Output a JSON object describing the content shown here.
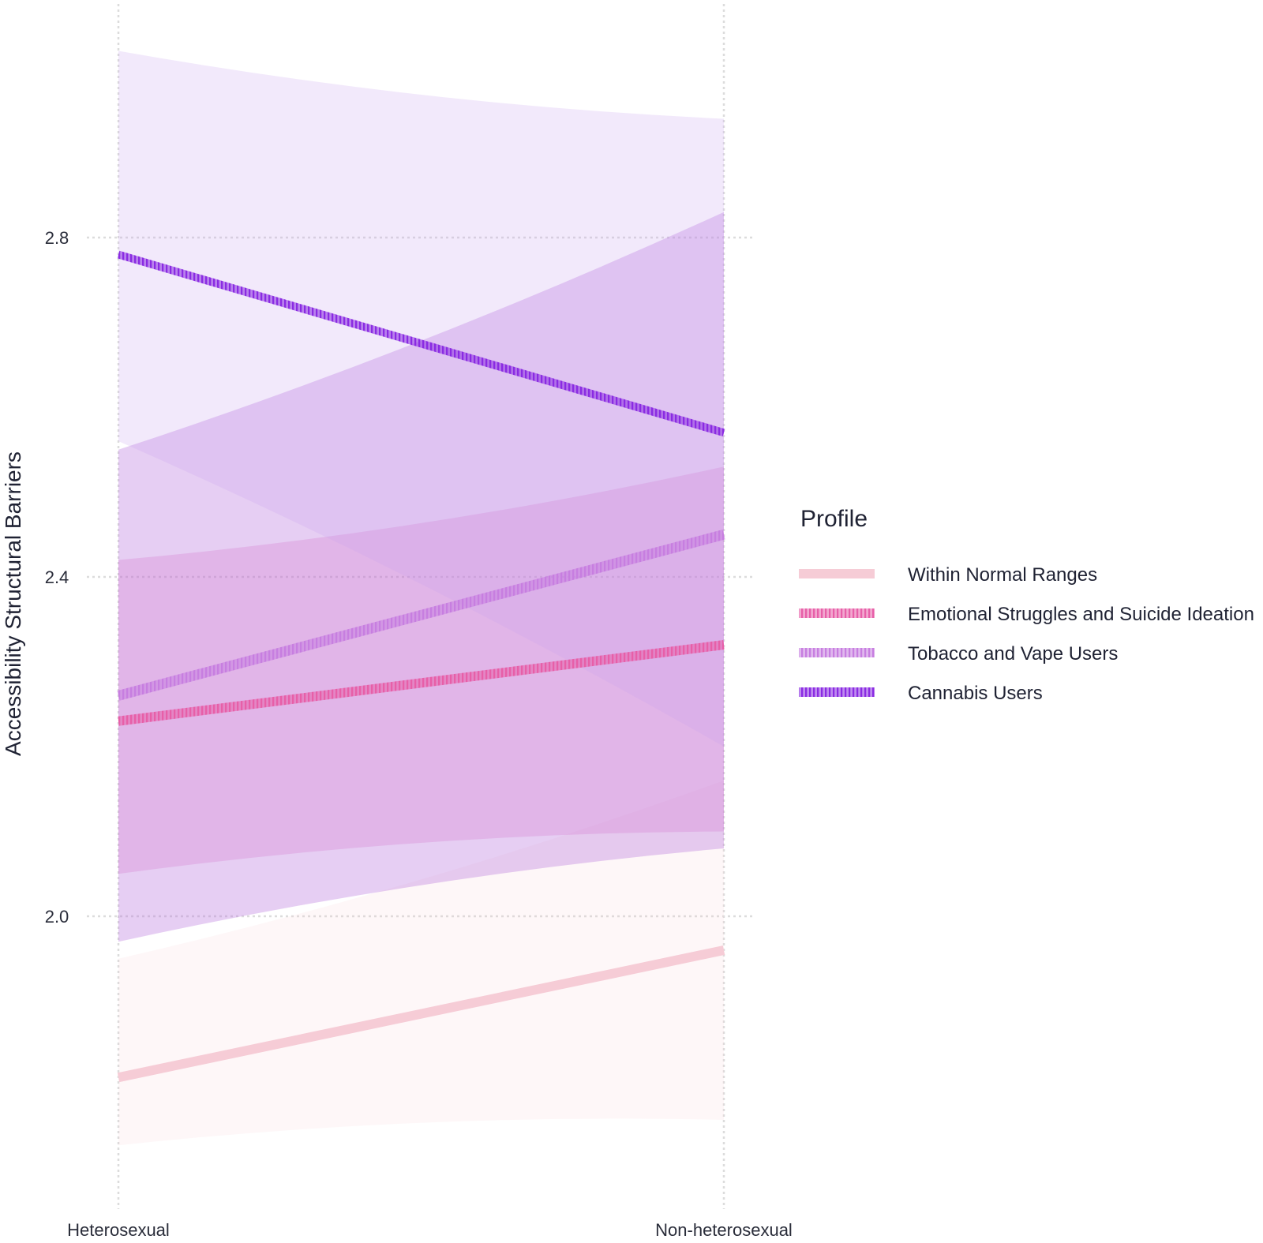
{
  "chart_data": {
    "type": "line",
    "title": "",
    "xlabel": "",
    "ylabel": "Accessibility Structural Barriers",
    "categories": [
      "Heterosexual",
      "Non-heterosexual"
    ],
    "yticks": [
      "2.0",
      "2.4",
      "2.8"
    ],
    "ytick_values": [
      2.0,
      2.4,
      2.8
    ],
    "ylim": [
      1.64,
      3.08
    ],
    "grid": true,
    "legend": {
      "title": "Profile",
      "position": "right"
    },
    "series": [
      {
        "name": "Within Normal Ranges",
        "color": "#f6ccd6",
        "values": [
          1.81,
          1.96
        ],
        "ci_low": [
          1.73,
          1.76
        ],
        "ci_high": [
          1.95,
          2.16
        ]
      },
      {
        "name": "Emotional Struggles and Suicide Ideation",
        "color": "#e75fa8",
        "values": [
          2.23,
          2.32
        ],
        "ci_low": [
          2.05,
          2.1
        ],
        "ci_high": [
          2.42,
          2.53
        ]
      },
      {
        "name": "Tobacco and Vape Users",
        "color": "#c77ee0",
        "values": [
          2.26,
          2.45
        ],
        "ci_low": [
          1.97,
          2.08
        ],
        "ci_high": [
          2.55,
          2.83
        ]
      },
      {
        "name": "Cannabis Users",
        "color": "#8a2be2",
        "values": [
          2.78,
          2.57
        ],
        "ci_low": [
          2.56,
          2.2
        ],
        "ci_high": [
          3.02,
          2.94
        ]
      }
    ]
  }
}
